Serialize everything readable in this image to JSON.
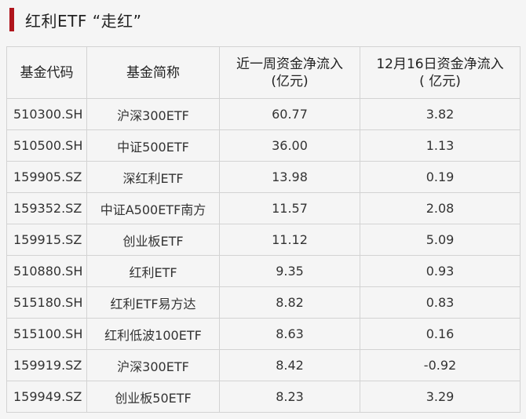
{
  "title": "红利ETF “走红”",
  "accent_color": "#b0151c",
  "table": {
    "headers": {
      "code": "基金代码",
      "name": "基金简称",
      "weekly_line1": "近一周资金净流入",
      "weekly_line2": "(亿元)",
      "daily_line1": "12月16日资金净流入",
      "daily_line2": "( 亿元)"
    },
    "rows": [
      {
        "code": "510300.SH",
        "name": "沪深300ETF",
        "weekly": "60.77",
        "daily": "3.82"
      },
      {
        "code": "510500.SH",
        "name": "中证500ETF",
        "weekly": "36.00",
        "daily": "1.13"
      },
      {
        "code": "159905.SZ",
        "name": "深红利ETF",
        "weekly": "13.98",
        "daily": "0.19"
      },
      {
        "code": "159352.SZ",
        "name": "中证A500ETF南方",
        "weekly": "11.57",
        "daily": "2.08"
      },
      {
        "code": "159915.SZ",
        "name": "创业板ETF",
        "weekly": "11.12",
        "daily": "5.09"
      },
      {
        "code": "510880.SH",
        "name": "红利ETF",
        "weekly": "9.35",
        "daily": "0.93"
      },
      {
        "code": "515180.SH",
        "name": "红利ETF易方达",
        "weekly": "8.82",
        "daily": "0.83"
      },
      {
        "code": "515100.SH",
        "name": "红利低波100ETF",
        "weekly": "8.63",
        "daily": "0.16"
      },
      {
        "code": "159919.SZ",
        "name": "沪深300ETF",
        "weekly": "8.42",
        "daily": "-0.92"
      },
      {
        "code": "159949.SZ",
        "name": "创业板50ETF",
        "weekly": "8.23",
        "daily": "3.29"
      }
    ]
  }
}
